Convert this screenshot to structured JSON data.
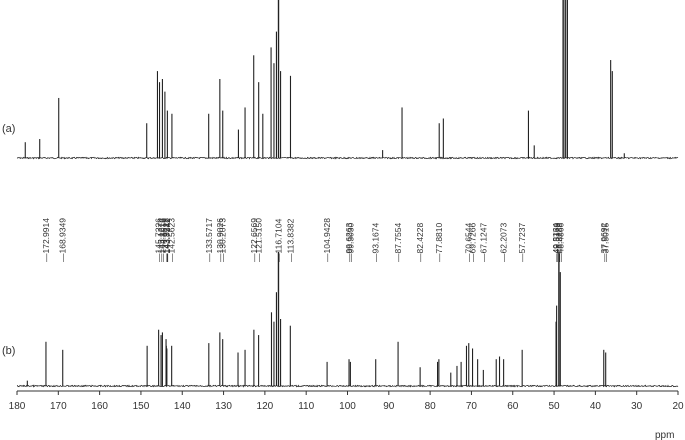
{
  "chart_data": [
    {
      "type": "line",
      "panel_label": "(a)",
      "xlabel": "ppm",
      "xlim": [
        180,
        20
      ],
      "x_reversed": true,
      "grid": false,
      "peaks": [
        {
          "x": 178.0,
          "y": 0.1
        },
        {
          "x": 174.5,
          "y": 0.12
        },
        {
          "x": 169.9,
          "y": 0.38
        },
        {
          "x": 148.6,
          "y": 0.22
        },
        {
          "x": 146.0,
          "y": 0.55
        },
        {
          "x": 145.5,
          "y": 0.48
        },
        {
          "x": 144.8,
          "y": 0.5
        },
        {
          "x": 144.2,
          "y": 0.42
        },
        {
          "x": 143.6,
          "y": 0.3
        },
        {
          "x": 142.5,
          "y": 0.28
        },
        {
          "x": 133.6,
          "y": 0.28
        },
        {
          "x": 130.9,
          "y": 0.5
        },
        {
          "x": 130.2,
          "y": 0.3
        },
        {
          "x": 126.4,
          "y": 0.18
        },
        {
          "x": 124.8,
          "y": 0.32
        },
        {
          "x": 122.7,
          "y": 0.65
        },
        {
          "x": 121.5,
          "y": 0.48
        },
        {
          "x": 120.5,
          "y": 0.28
        },
        {
          "x": 118.5,
          "y": 0.7
        },
        {
          "x": 117.8,
          "y": 0.6
        },
        {
          "x": 117.2,
          "y": 0.8
        },
        {
          "x": 116.7,
          "y": 1.0
        },
        {
          "x": 116.2,
          "y": 0.55
        },
        {
          "x": 113.8,
          "y": 0.52
        },
        {
          "x": 91.5,
          "y": 0.05
        },
        {
          "x": 86.8,
          "y": 0.32
        },
        {
          "x": 77.8,
          "y": 0.22
        },
        {
          "x": 76.8,
          "y": 0.25
        },
        {
          "x": 56.2,
          "y": 0.3
        },
        {
          "x": 54.8,
          "y": 0.08
        },
        {
          "x": 47.8,
          "y": 1.0
        },
        {
          "x": 47.3,
          "y": 1.0
        },
        {
          "x": 46.8,
          "y": 1.0
        },
        {
          "x": 36.3,
          "y": 0.62
        },
        {
          "x": 35.9,
          "y": 0.55
        },
        {
          "x": 33.0,
          "y": 0.03
        }
      ]
    },
    {
      "type": "line",
      "panel_label": "(b)",
      "xlabel": "ppm",
      "xlim": [
        180,
        20
      ],
      "x_reversed": true,
      "grid": false,
      "peak_labels": [
        "172.9914",
        "168.9349",
        "145.7226",
        "145.1274",
        "144.8018",
        "143.9228",
        "143.8511",
        "143.7242",
        "142.5623",
        "133.5717",
        "130.9026",
        "130.2073",
        "122.6569",
        "121.5150",
        "116.7104",
        "113.8382",
        "104.9428",
        "99.6263",
        "99.3030",
        "93.1674",
        "87.7554",
        "82.4228",
        "77.8810",
        "70.6544",
        "69.7266",
        "67.1247",
        "62.2073",
        "57.7237",
        "49.5164",
        "49.3779",
        "48.8289",
        "48.4866",
        "37.9692",
        "37.5015"
      ],
      "peaks": [
        {
          "x": 177.5,
          "y": 0.04
        },
        {
          "x": 172.99,
          "y": 0.33
        },
        {
          "x": 168.93,
          "y": 0.27
        },
        {
          "x": 148.5,
          "y": 0.3
        },
        {
          "x": 145.72,
          "y": 0.42
        },
        {
          "x": 145.13,
          "y": 0.38
        },
        {
          "x": 144.8,
          "y": 0.4
        },
        {
          "x": 143.92,
          "y": 0.35
        },
        {
          "x": 143.85,
          "y": 0.3
        },
        {
          "x": 143.72,
          "y": 0.28
        },
        {
          "x": 142.56,
          "y": 0.3
        },
        {
          "x": 133.57,
          "y": 0.32
        },
        {
          "x": 130.9,
          "y": 0.4
        },
        {
          "x": 130.21,
          "y": 0.35
        },
        {
          "x": 126.5,
          "y": 0.25
        },
        {
          "x": 124.8,
          "y": 0.27
        },
        {
          "x": 122.66,
          "y": 0.42
        },
        {
          "x": 121.52,
          "y": 0.38
        },
        {
          "x": 118.4,
          "y": 0.55
        },
        {
          "x": 117.8,
          "y": 0.48
        },
        {
          "x": 117.2,
          "y": 0.7
        },
        {
          "x": 116.71,
          "y": 1.0
        },
        {
          "x": 116.2,
          "y": 0.5
        },
        {
          "x": 113.84,
          "y": 0.45
        },
        {
          "x": 104.94,
          "y": 0.18
        },
        {
          "x": 99.63,
          "y": 0.2
        },
        {
          "x": 99.3,
          "y": 0.18
        },
        {
          "x": 93.17,
          "y": 0.2
        },
        {
          "x": 87.76,
          "y": 0.33
        },
        {
          "x": 82.42,
          "y": 0.14
        },
        {
          "x": 78.2,
          "y": 0.18
        },
        {
          "x": 77.88,
          "y": 0.2
        },
        {
          "x": 75.0,
          "y": 0.1
        },
        {
          "x": 73.5,
          "y": 0.15
        },
        {
          "x": 72.5,
          "y": 0.18
        },
        {
          "x": 71.2,
          "y": 0.3
        },
        {
          "x": 70.65,
          "y": 0.32
        },
        {
          "x": 69.73,
          "y": 0.28
        },
        {
          "x": 68.5,
          "y": 0.2
        },
        {
          "x": 67.12,
          "y": 0.12
        },
        {
          "x": 64.0,
          "y": 0.2
        },
        {
          "x": 63.2,
          "y": 0.22
        },
        {
          "x": 62.21,
          "y": 0.2
        },
        {
          "x": 57.72,
          "y": 0.27
        },
        {
          "x": 49.52,
          "y": 0.48
        },
        {
          "x": 49.38,
          "y": 0.6
        },
        {
          "x": 48.83,
          "y": 1.0
        },
        {
          "x": 48.49,
          "y": 0.85
        },
        {
          "x": 37.97,
          "y": 0.27
        },
        {
          "x": 37.5,
          "y": 0.25
        }
      ]
    }
  ],
  "axis": {
    "ticks": [
      180,
      170,
      160,
      150,
      140,
      130,
      120,
      110,
      100,
      90,
      80,
      70,
      60,
      50,
      40,
      30,
      20
    ],
    "unit": "ppm"
  },
  "colors": {
    "trace": "#222222",
    "axis": "#333333",
    "text": "#333333"
  }
}
